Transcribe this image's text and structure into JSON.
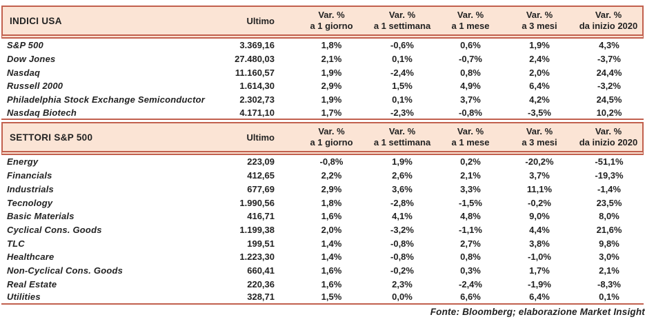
{
  "colors": {
    "header_fill": "#fbe4d5",
    "border_line": "#c15f4d",
    "text": "#222222"
  },
  "footer": {
    "text": "Fonte: Bloomberg; elaborazione Market Insight"
  },
  "chart_data": [
    {
      "type": "table",
      "title": "INDICI USA",
      "ultimo_label": "Ultimo",
      "var_headers": [
        {
          "line1": "Var. %",
          "line2": "a 1 giorno"
        },
        {
          "line1": "Var. %",
          "line2": "a 1 settimana"
        },
        {
          "line1": "Var. %",
          "line2": "a 1 mese"
        },
        {
          "line1": "Var. %",
          "line2": "a 3 mesi"
        },
        {
          "line1": "Var. %",
          "line2": "da inizio 2020"
        }
      ],
      "rows": [
        {
          "name": "S&P 500",
          "ultimo": "3.369,16",
          "var_1g": "1,8%",
          "var_1s": "-0,6%",
          "var_1m": "0,6%",
          "var_3m": "1,9%",
          "var_ytd": "4,3%"
        },
        {
          "name": "Dow Jones",
          "ultimo": "27.480,03",
          "var_1g": "2,1%",
          "var_1s": "0,1%",
          "var_1m": "-0,7%",
          "var_3m": "2,4%",
          "var_ytd": "-3,7%"
        },
        {
          "name": "Nasdaq",
          "ultimo": "11.160,57",
          "var_1g": "1,9%",
          "var_1s": "-2,4%",
          "var_1m": "0,8%",
          "var_3m": "2,0%",
          "var_ytd": "24,4%"
        },
        {
          "name": "Russell 2000",
          "ultimo": "1.614,30",
          "var_1g": "2,9%",
          "var_1s": "1,5%",
          "var_1m": "4,9%",
          "var_3m": "6,4%",
          "var_ytd": "-3,2%"
        },
        {
          "name": "Philadelphia Stock Exchange Semiconductor",
          "ultimo": "2.302,73",
          "var_1g": "1,9%",
          "var_1s": "0,1%",
          "var_1m": "3,7%",
          "var_3m": "4,2%",
          "var_ytd": "24,5%"
        },
        {
          "name": "Nasdaq Biotech",
          "ultimo": "4.171,10",
          "var_1g": "1,7%",
          "var_1s": "-2,3%",
          "var_1m": "-0,8%",
          "var_3m": "-3,5%",
          "var_ytd": "10,2%"
        }
      ]
    },
    {
      "type": "table",
      "title": "SETTORI S&P 500",
      "ultimo_label": "Ultimo",
      "var_headers": [
        {
          "line1": "Var. %",
          "line2": "a 1 giorno"
        },
        {
          "line1": "Var. %",
          "line2": "a 1 settimana"
        },
        {
          "line1": "Var. %",
          "line2": "a 1 mese"
        },
        {
          "line1": "Var. %",
          "line2": "a 3 mesi"
        },
        {
          "line1": "Var. %",
          "line2": "da inizio 2020"
        }
      ],
      "rows": [
        {
          "name": "Energy",
          "ultimo": "223,09",
          "var_1g": "-0,8%",
          "var_1s": "1,9%",
          "var_1m": "0,2%",
          "var_3m": "-20,2%",
          "var_ytd": "-51,1%"
        },
        {
          "name": "Financials",
          "ultimo": "412,65",
          "var_1g": "2,2%",
          "var_1s": "2,6%",
          "var_1m": "2,1%",
          "var_3m": "3,7%",
          "var_ytd": "-19,3%"
        },
        {
          "name": "Industrials",
          "ultimo": "677,69",
          "var_1g": "2,9%",
          "var_1s": "3,6%",
          "var_1m": "3,3%",
          "var_3m": "11,1%",
          "var_ytd": "-1,4%"
        },
        {
          "name": "Tecnology",
          "ultimo": "1.990,56",
          "var_1g": "1,8%",
          "var_1s": "-2,8%",
          "var_1m": "-1,5%",
          "var_3m": "-0,2%",
          "var_ytd": "23,5%"
        },
        {
          "name": "Basic Materials",
          "ultimo": "416,71",
          "var_1g": "1,6%",
          "var_1s": "4,1%",
          "var_1m": "4,8%",
          "var_3m": "9,0%",
          "var_ytd": "8,0%"
        },
        {
          "name": "Cyclical Cons. Goods",
          "ultimo": "1.199,38",
          "var_1g": "2,0%",
          "var_1s": "-3,2%",
          "var_1m": "-1,1%",
          "var_3m": "4,4%",
          "var_ytd": "21,6%"
        },
        {
          "name": "TLC",
          "ultimo": "199,51",
          "var_1g": "1,4%",
          "var_1s": "-0,8%",
          "var_1m": "2,7%",
          "var_3m": "3,8%",
          "var_ytd": "9,8%"
        },
        {
          "name": "Healthcare",
          "ultimo": "1.223,30",
          "var_1g": "1,4%",
          "var_1s": "-0,8%",
          "var_1m": "0,8%",
          "var_3m": "-1,0%",
          "var_ytd": "3,0%"
        },
        {
          "name": "Non-Cyclical Cons. Goods",
          "ultimo": "660,41",
          "var_1g": "1,6%",
          "var_1s": "-0,2%",
          "var_1m": "0,3%",
          "var_3m": "1,7%",
          "var_ytd": "2,1%"
        },
        {
          "name": "Real Estate",
          "ultimo": "220,36",
          "var_1g": "1,6%",
          "var_1s": "2,3%",
          "var_1m": "-2,4%",
          "var_3m": "-1,9%",
          "var_ytd": "-8,3%"
        },
        {
          "name": "Utilities",
          "ultimo": "328,71",
          "var_1g": "1,5%",
          "var_1s": "0,0%",
          "var_1m": "6,6%",
          "var_3m": "6,4%",
          "var_ytd": "0,1%"
        }
      ]
    }
  ]
}
